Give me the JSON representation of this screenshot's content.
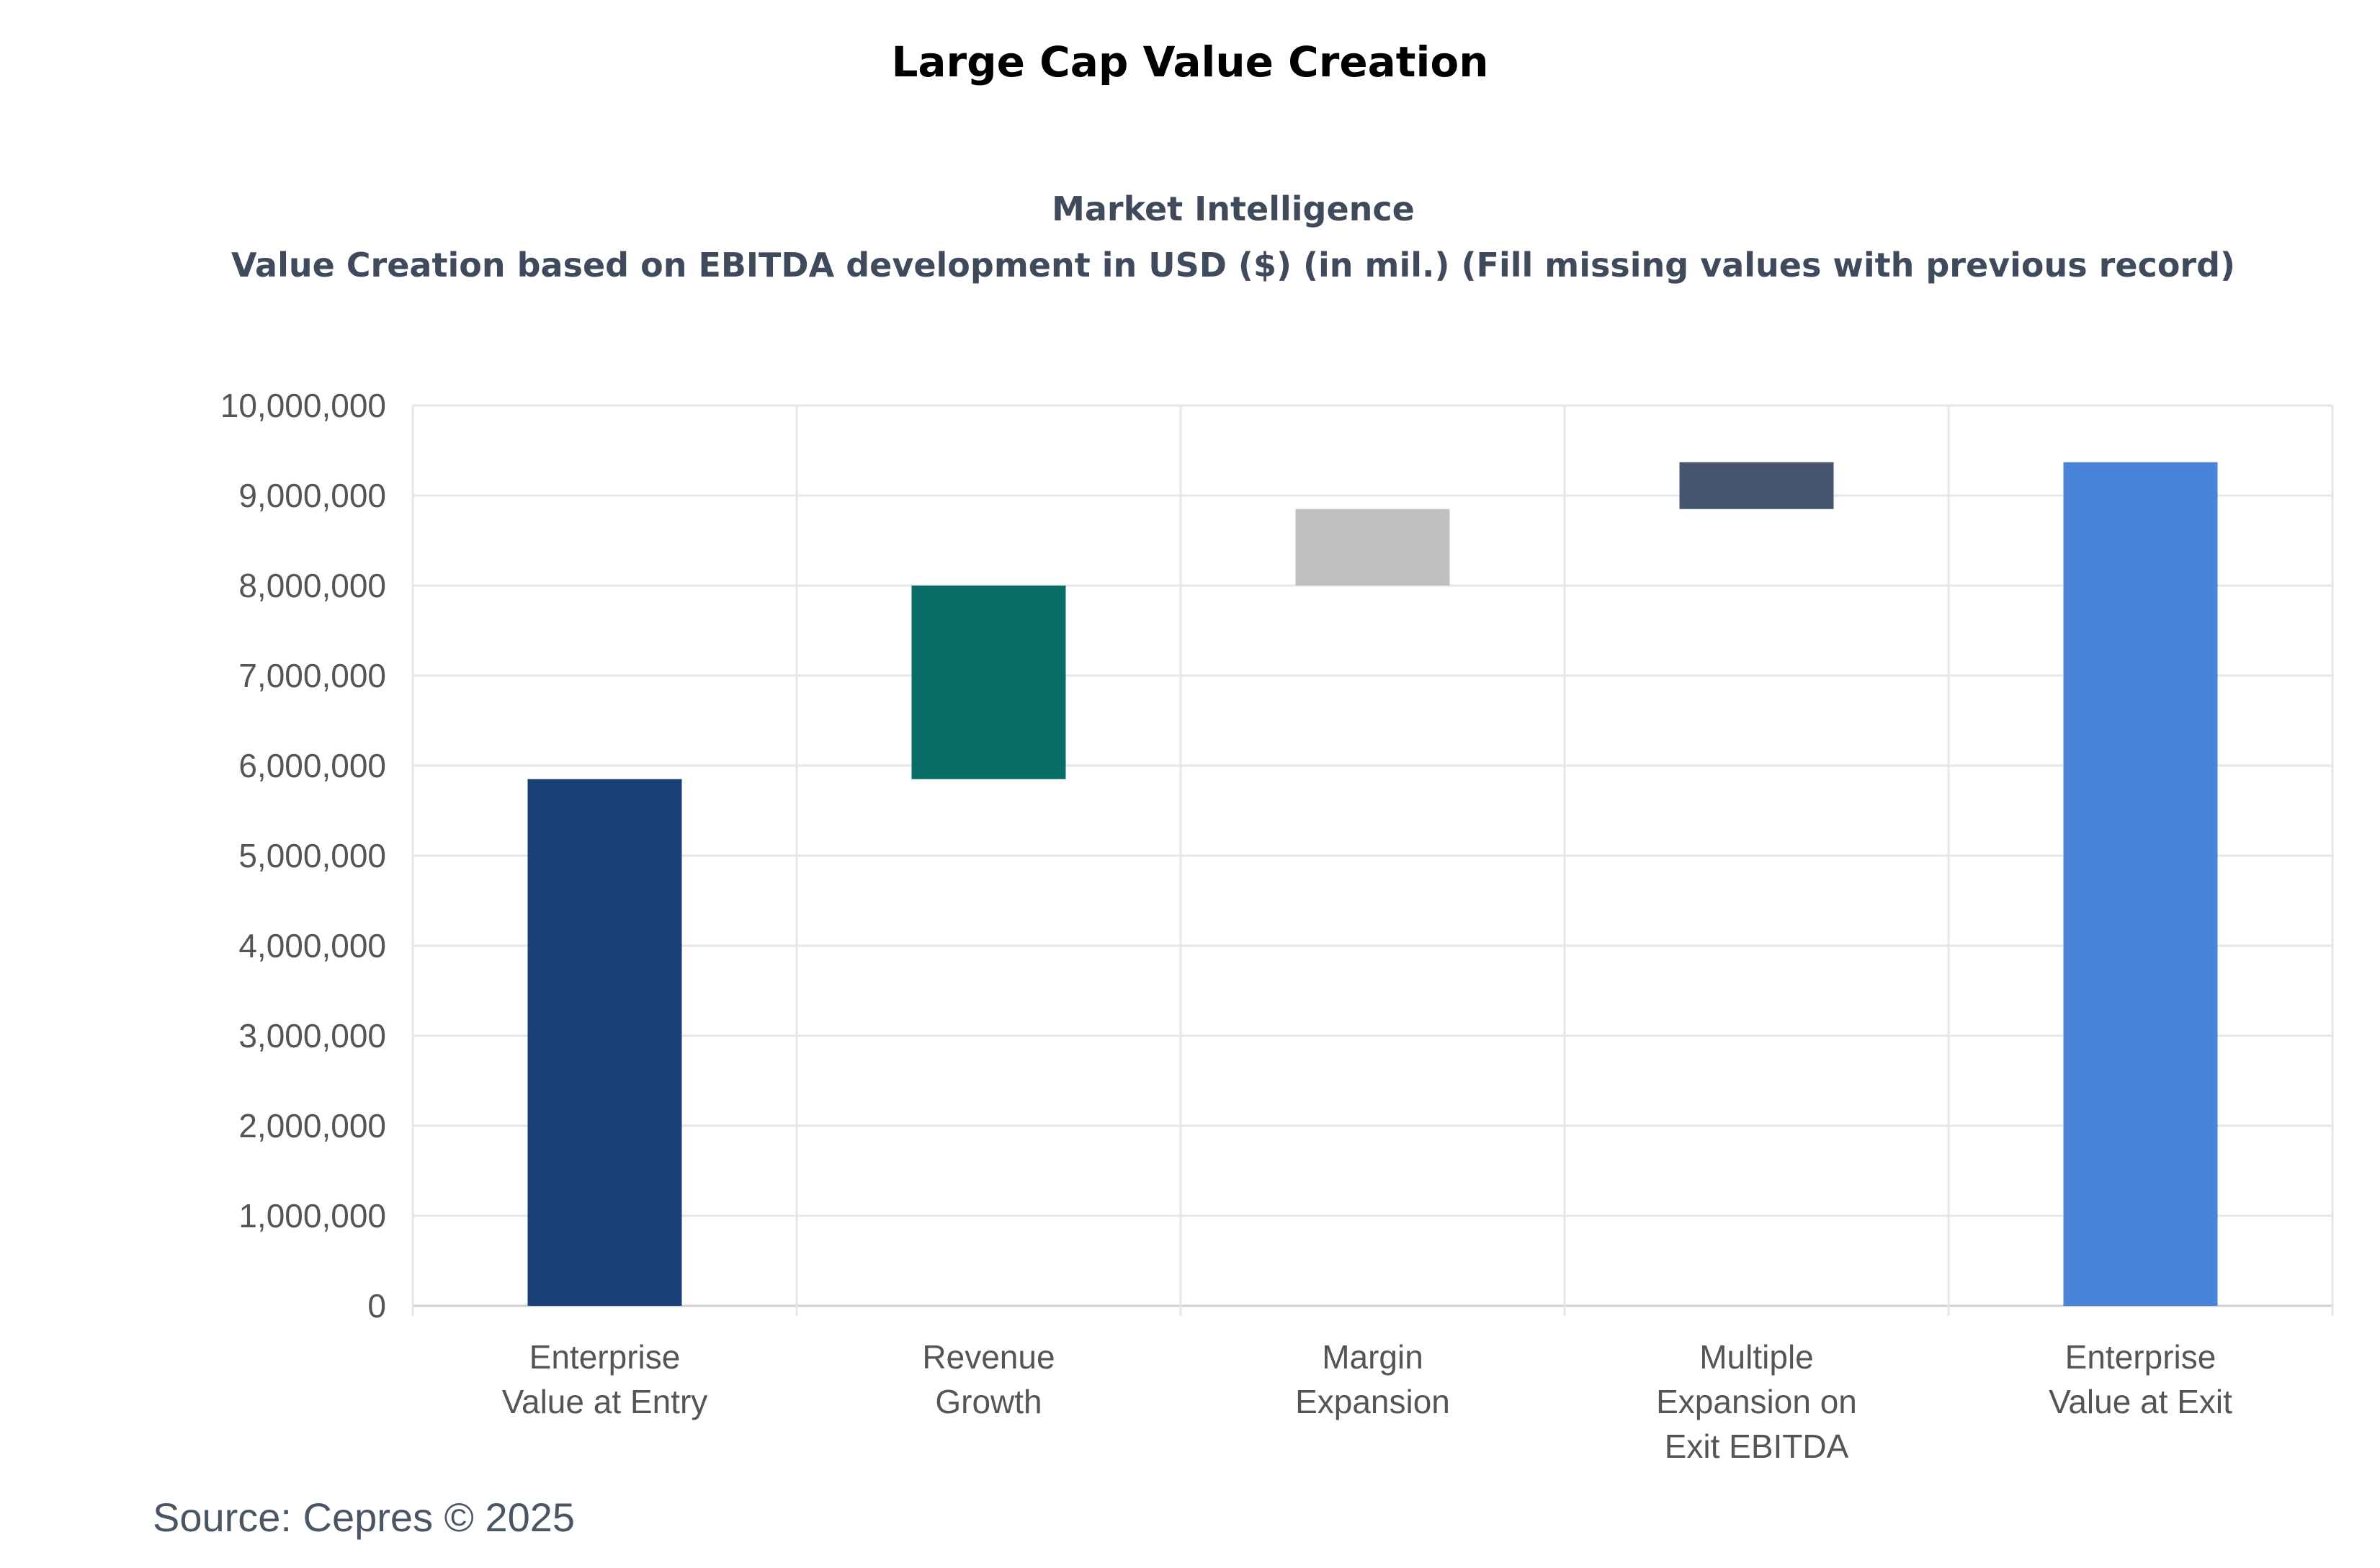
{
  "page": {
    "title": "Large Cap Value Creation",
    "source": "Source: Cepres © 2025"
  },
  "chart_data": {
    "type": "bar",
    "subtype": "waterfall",
    "title": "Market Intelligence",
    "subtitle": "Value Creation based on EBITDA development in USD ($) (in mil.) (Fill missing values with previous record)",
    "xlabel": "",
    "ylabel": "",
    "ylim": [
      0,
      10000000
    ],
    "yticks": [
      0,
      1000000,
      2000000,
      3000000,
      4000000,
      5000000,
      6000000,
      7000000,
      8000000,
      9000000,
      10000000
    ],
    "ytick_labels": [
      "0",
      "1,000,000",
      "2,000,000",
      "3,000,000",
      "4,000,000",
      "5,000,000",
      "6,000,000",
      "7,000,000",
      "8,000,000",
      "9,000,000",
      "10,000,000"
    ],
    "grid": true,
    "categories": [
      [
        "Enterprise",
        "Value at Entry"
      ],
      [
        "Revenue",
        "Growth"
      ],
      [
        "Margin",
        "Expansion"
      ],
      [
        "Multiple",
        "Expansion on",
        "Exit EBITDA"
      ],
      [
        "Enterprise",
        "Value at Exit"
      ]
    ],
    "bars": [
      {
        "name": "Enterprise Value at Entry",
        "start": 0,
        "end": 5850000,
        "color": "#1b3f77"
      },
      {
        "name": "Revenue Growth",
        "start": 5850000,
        "end": 8000000,
        "color": "#096d67"
      },
      {
        "name": "Margin Expansion",
        "start": 8000000,
        "end": 8850000,
        "color": "#c0c0c0"
      },
      {
        "name": "Multiple Expansion on Exit EBITDA",
        "start": 8850000,
        "end": 9370000,
        "color": "#45556e"
      },
      {
        "name": "Enterprise Value at Exit",
        "start": 0,
        "end": 9370000,
        "color": "#4a84d8"
      }
    ]
  }
}
